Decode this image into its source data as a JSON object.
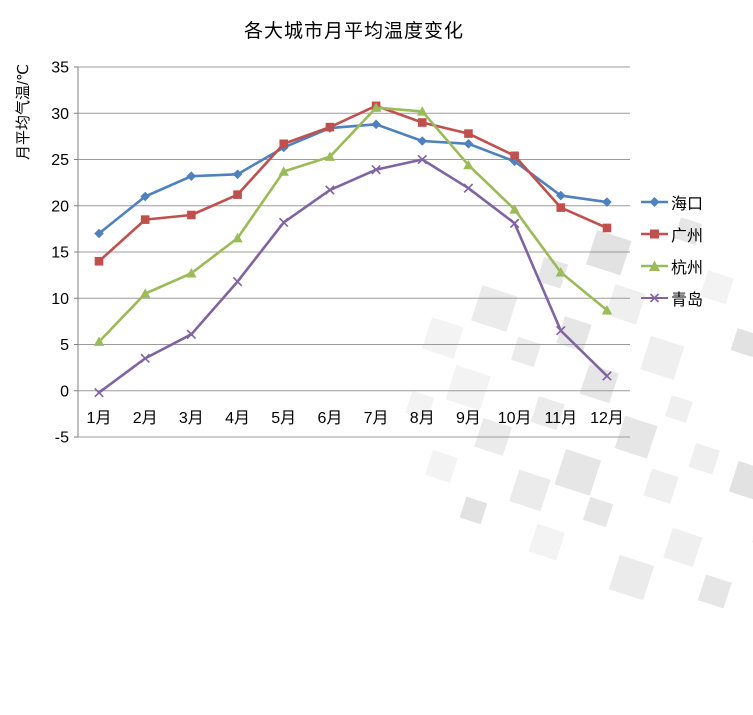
{
  "title": "各大城市月平均温度变化",
  "y_axis_title": "月平均气温/℃",
  "colors": {
    "haikou": "#4F81BD",
    "guangzhou": "#C0504D",
    "hangzhou": "#9BBB59",
    "qingdao": "#8064A2",
    "gridline": "#9b9b9b",
    "axis_line": "#808080",
    "text": "#000000"
  },
  "chart_data": {
    "type": "line",
    "title": "各大城市月平均温度变化",
    "xlabel": "",
    "ylabel": "月平均气温/℃",
    "categories": [
      "1月",
      "2月",
      "3月",
      "4月",
      "5月",
      "6月",
      "7月",
      "8月",
      "9月",
      "10月",
      "11月",
      "12月"
    ],
    "series": [
      {
        "id": "haikou",
        "name": "海口",
        "marker": "diamond",
        "color": "#4F81BD",
        "values": [
          17,
          21,
          23.2,
          23.4,
          26.3,
          28.4,
          28.8,
          27,
          26.7,
          24.8,
          21.1,
          20.4
        ]
      },
      {
        "id": "guangzhou",
        "name": "广州",
        "marker": "square",
        "color": "#C0504D",
        "values": [
          14,
          18.5,
          19,
          21.2,
          26.7,
          28.5,
          30.8,
          29,
          27.8,
          25.4,
          19.8,
          17.6
        ]
      },
      {
        "id": "hangzhou",
        "name": "杭州",
        "marker": "triangle",
        "color": "#9BBB59",
        "values": [
          5.3,
          10.5,
          12.7,
          16.5,
          23.7,
          25.3,
          30.6,
          30.2,
          24.4,
          19.6,
          12.8,
          8.7
        ]
      },
      {
        "id": "qingdao",
        "name": "青岛",
        "marker": "x",
        "color": "#8064A2",
        "values": [
          -0.2,
          3.5,
          6.1,
          11.8,
          18.2,
          21.7,
          23.9,
          25,
          21.9,
          18.1,
          6.5,
          1.6
        ]
      }
    ],
    "ylim": [
      -5,
      35
    ],
    "ytick_step": 5,
    "yticks": [
      35,
      30,
      25,
      20,
      15,
      10,
      5,
      0,
      -5
    ],
    "grid": true,
    "legend_position": "right"
  }
}
